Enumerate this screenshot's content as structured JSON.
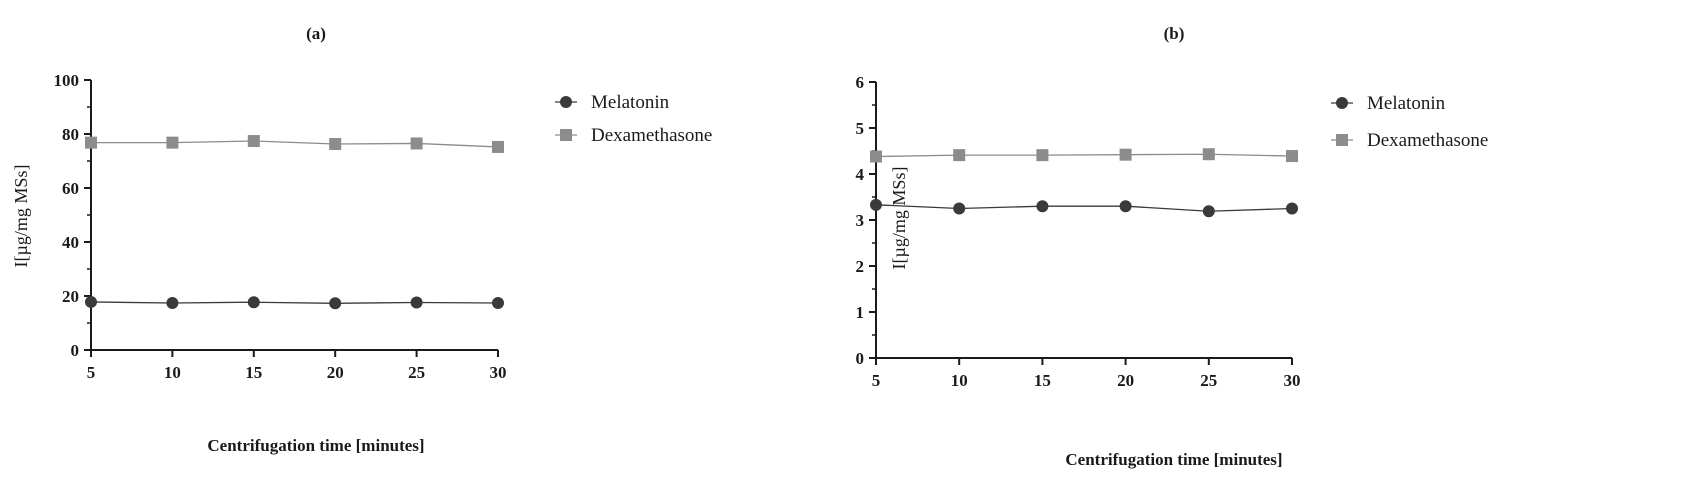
{
  "chart_data": [
    {
      "type": "line",
      "panel_label": "(a)",
      "xlabel": "Centrifugation time [minutes]",
      "ylabel": "I[µg/mg MSs]",
      "x": [
        5,
        10,
        15,
        20,
        25,
        30
      ],
      "xlim": [
        5,
        30
      ],
      "ylim": [
        0,
        100
      ],
      "x_ticks": [
        5,
        10,
        15,
        20,
        25,
        30
      ],
      "y_ticks": [
        0,
        20,
        40,
        60,
        80,
        100
      ],
      "series": [
        {
          "name": "Melatonin",
          "values": [
            17.8,
            17.4,
            17.7,
            17.3,
            17.6,
            17.4
          ],
          "color": "#3a3a3a",
          "marker": "circle"
        },
        {
          "name": "Dexamethasone",
          "values": [
            76.8,
            76.8,
            77.4,
            76.3,
            76.5,
            75.2
          ],
          "color": "#8c8c8c",
          "marker": "square"
        }
      ],
      "grid": false,
      "legend": "right"
    },
    {
      "type": "line",
      "panel_label": "(b)",
      "xlabel": "Centrifugation time [minutes]",
      "ylabel": "I[µg/mg MSs]",
      "x": [
        5,
        10,
        15,
        20,
        25,
        30
      ],
      "xlim": [
        5,
        30
      ],
      "ylim": [
        0,
        6
      ],
      "x_ticks": [
        5,
        10,
        15,
        20,
        25,
        30
      ],
      "y_ticks": [
        0,
        1,
        2,
        3,
        4,
        5,
        6
      ],
      "series": [
        {
          "name": "Melatonin",
          "values": [
            3.33,
            3.25,
            3.3,
            3.3,
            3.19,
            3.25
          ],
          "color": "#3a3a3a",
          "marker": "circle"
        },
        {
          "name": "Dexamethasone",
          "values": [
            4.38,
            4.41,
            4.41,
            4.42,
            4.43,
            4.39
          ],
          "color": "#8c8c8c",
          "marker": "square"
        }
      ],
      "grid": false,
      "legend": "right"
    }
  ]
}
